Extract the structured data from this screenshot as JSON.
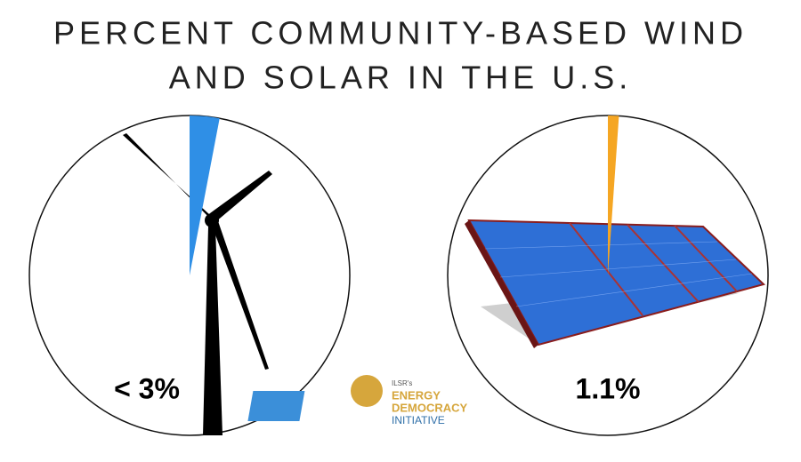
{
  "title": [
    "PERCENT COMMUNITY-BASED WIND",
    "AND SOLAR IN THE U.S."
  ],
  "chart_data": [
    {
      "type": "pie",
      "values": [
        3
      ],
      "value_labels": [
        "< 3%"
      ],
      "color": "#2f8fe6"
    },
    {
      "type": "pie",
      "values": [
        1.1
      ],
      "value_labels": [
        "1.1%"
      ],
      "color": "#f5a623"
    }
  ],
  "logo": {
    "org": "ILSR's",
    "lines": [
      "ENERGY",
      "DEMOCRACY",
      "INITIATIVE"
    ]
  }
}
